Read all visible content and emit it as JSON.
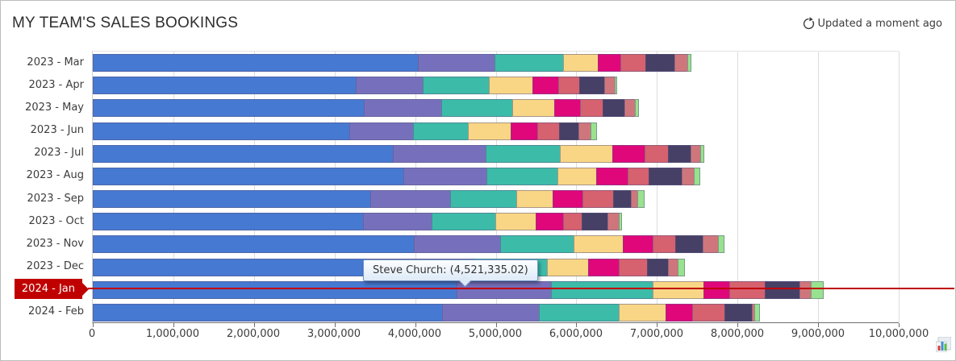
{
  "header": {
    "title": "MY TEAM'S SALES BOOKINGS",
    "status": "Updated a moment ago",
    "refresh_icon": "refresh-icon"
  },
  "chart_data": {
    "type": "bar",
    "orientation": "horizontal",
    "stacked": true,
    "title": "MY TEAM'S SALES BOOKINGS",
    "xlabel": "",
    "ylabel": "",
    "xlim": [
      0,
      10000000
    ],
    "grid": "vertical",
    "legend": "none",
    "x_ticks": [
      0,
      1000000,
      2000000,
      3000000,
      4000000,
      5000000,
      6000000,
      7000000,
      8000000,
      9000000,
      10000000
    ],
    "x_tick_labels": [
      "0",
      "1,000,000",
      "2,000,000",
      "3,000,000",
      "4,000,000",
      "5,000,000",
      "6,000,000",
      "7,000,000",
      "8,000,000",
      "9,000,000",
      "10,000,000"
    ],
    "categories": [
      "2023 - Mar",
      "2023 - Apr",
      "2023 - May",
      "2023 - Jun",
      "2023 - Jul",
      "2023 - Aug",
      "2023 - Sep",
      "2023 - Oct",
      "2023 - Nov",
      "2023 - Dec",
      "2024 - Jan",
      "2024 - Feb"
    ],
    "series": [
      {
        "name": "Steve Church",
        "color": "#4679D2",
        "values": [
          4040000,
          3270000,
          3370000,
          3190000,
          3730000,
          3860000,
          3450000,
          3360000,
          3990000,
          3420000,
          4521335.02,
          4340000
        ]
      },
      {
        "name": "",
        "color": "#7670BC",
        "values": [
          970000,
          840000,
          970000,
          800000,
          1160000,
          1040000,
          1000000,
          860000,
          1090000,
          1340000,
          1180000,
          1220000
        ]
      },
      {
        "name": "",
        "color": "#3CBCA8",
        "values": [
          860000,
          840000,
          900000,
          690000,
          940000,
          900000,
          840000,
          810000,
          920000,
          910000,
          1280000,
          1000000
        ]
      },
      {
        "name": "",
        "color": "#F9D685",
        "values": [
          440000,
          550000,
          530000,
          550000,
          660000,
          490000,
          460000,
          510000,
          620000,
          520000,
          640000,
          590000
        ]
      },
      {
        "name": "",
        "color": "#E0077B",
        "values": [
          290000,
          330000,
          330000,
          340000,
          410000,
          400000,
          380000,
          350000,
          380000,
          390000,
          330000,
          340000
        ]
      },
      {
        "name": "",
        "color": "#D6616F",
        "values": [
          320000,
          270000,
          290000,
          280000,
          300000,
          270000,
          390000,
          240000,
          290000,
          360000,
          450000,
          410000
        ]
      },
      {
        "name": "",
        "color": "#474066",
        "values": [
          370000,
          320000,
          280000,
          250000,
          290000,
          420000,
          230000,
          330000,
          350000,
          270000,
          440000,
          350000
        ]
      },
      {
        "name": "",
        "color": "#CF767C",
        "values": [
          170000,
          140000,
          140000,
          160000,
          130000,
          160000,
          90000,
          150000,
          200000,
          130000,
          150000,
          40000
        ]
      },
      {
        "name": "",
        "color": "#98E28F",
        "values": [
          50000,
          30000,
          50000,
          80000,
          50000,
          80000,
          90000,
          40000,
          80000,
          90000,
          160000,
          70000
        ]
      }
    ],
    "highlight": {
      "category": "2024 - Jan",
      "color": "#C00000"
    },
    "tooltip": {
      "label": "Steve Church: (4,521,335.02)",
      "series": "Steve Church",
      "category": "2024 - Jan",
      "value": 4521335.02
    }
  },
  "icons": {
    "refresh": "refresh-icon",
    "credits": "bar-chart-icon"
  }
}
